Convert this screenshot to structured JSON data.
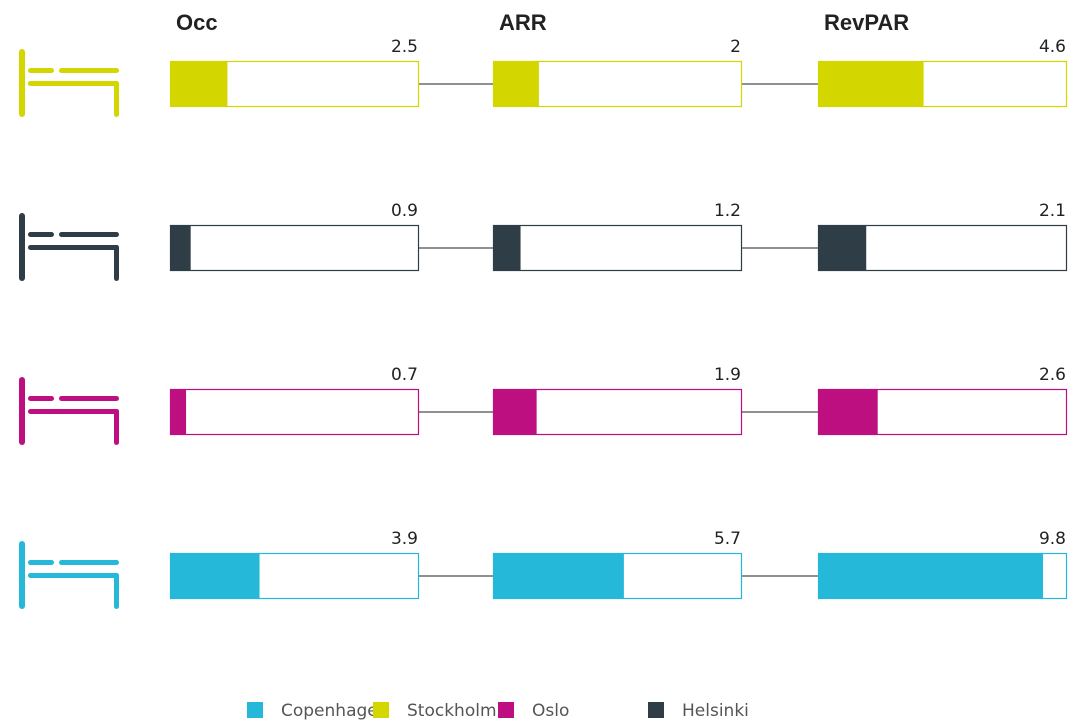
{
  "chart_data": {
    "type": "bar",
    "categories": [
      "Occ",
      "ARR",
      "RevPAR"
    ],
    "xlim": [
      0,
      10.8
    ],
    "series": [
      {
        "name": "Copenhagen",
        "color": "#26b8d8",
        "values": [
          3.9,
          5.7,
          9.8
        ]
      },
      {
        "name": "Stockholm",
        "color": "#d4d600",
        "values": [
          2.5,
          2.0,
          4.6
        ]
      },
      {
        "name": "Oslo",
        "color": "#be0f80",
        "values": [
          0.7,
          1.9,
          2.6
        ]
      },
      {
        "name": "Helsinki",
        "color": "#2f3d47",
        "values": [
          0.9,
          1.2,
          2.1
        ]
      }
    ]
  }
}
